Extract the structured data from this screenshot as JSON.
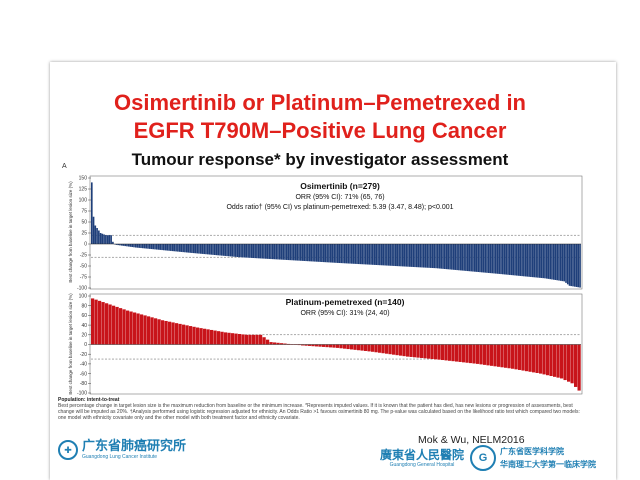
{
  "slide": {
    "title_line1": "Osimertinib or Platinum–Pemetrexed  in",
    "title_line2": "EGFR T790M–Positive Lung Cancer",
    "subtitle": "Tumour response* by investigator assessment",
    "panel_letter": "A",
    "citation": "Mok & Wu,   NELM2016",
    "footnote_population": "Population: intent-to-treat",
    "footnote_text": "Best percentage change in target lesion size is the maximum reduction from baseline or the minimum increase. *Represents imputed values. If it is known that the patient has died, has new lesions or progression of assessments, best change will be imputed as 20%. †Analysis performed using logistic regression adjusted for ethnicity. An Odds Ratio >1 favours osimertinib 80 mg. The p-value was calculated based on the likelihood ratio test which compared two models: one model with ethnicity covariate only and the other model with both treatment factor and ethnicity covariate.",
    "logo_left_cn": "广东省肺癌研究所",
    "logo_left_en": "Guangdong Lung Cancer Institute",
    "logo_right_cn": "廣東省人民醫院",
    "logo_right_en": "Guangdong General Hospital",
    "academy_line1": "广东省医学科学院",
    "academy_line2": "华南理工大学第一临床学院"
  },
  "colors": {
    "title": "#e0211c",
    "osimertinib": "#1f3f7a",
    "platinum": "#c8141a",
    "logo": "#1f7fb3"
  },
  "chart_data": [
    {
      "type": "bar",
      "series_name": "Osimertinib (n=279)",
      "annotation_orr": "ORR (95% CI): 71% (65, 76)",
      "annotation_odds": "Odds ratio† (95% CI) vs platinum-pemetrexed: 5.39 (3.47, 8.48); p<0.001",
      "ylabel": "Best change from baseline in target lesion size (%)",
      "yticks": [
        -100,
        -75,
        -50,
        -25,
        0,
        25,
        50,
        75,
        100,
        125,
        150
      ],
      "ylim": [
        -100,
        150
      ],
      "reference_lines": [
        20,
        -30
      ],
      "n": 279,
      "profile": [
        [
          0,
          140
        ],
        [
          1,
          62
        ],
        [
          2,
          42
        ],
        [
          5,
          25
        ],
        [
          8,
          20
        ],
        [
          11,
          20
        ],
        [
          12,
          5
        ],
        [
          13,
          0
        ],
        [
          14,
          -2
        ],
        [
          25,
          -8
        ],
        [
          56,
          -20
        ],
        [
          84,
          -30
        ],
        [
          140,
          -43
        ],
        [
          196,
          -55
        ],
        [
          232,
          -68
        ],
        [
          258,
          -78
        ],
        [
          269,
          -85
        ],
        [
          272,
          -95
        ],
        [
          278,
          -99
        ]
      ]
    },
    {
      "type": "bar",
      "series_name": "Platinum-pemetrexed (n=140)",
      "annotation_orr": "ORR (95% CI): 31% (24, 40)",
      "ylabel": "Best change from baseline in target lesion size (%)",
      "yticks": [
        -100,
        -80,
        -60,
        -40,
        -20,
        0,
        20,
        40,
        60,
        80,
        100
      ],
      "ylim": [
        -100,
        100
      ],
      "reference_lines": [
        20,
        -30
      ],
      "n": 140,
      "profile": [
        [
          0,
          95
        ],
        [
          10,
          70
        ],
        [
          20,
          50
        ],
        [
          30,
          35
        ],
        [
          38,
          25
        ],
        [
          44,
          20
        ],
        [
          48,
          20
        ],
        [
          51,
          5
        ],
        [
          55,
          2
        ],
        [
          60,
          -2
        ],
        [
          70,
          -7
        ],
        [
          80,
          -15
        ],
        [
          90,
          -25
        ],
        [
          100,
          -32
        ],
        [
          110,
          -40
        ],
        [
          120,
          -50
        ],
        [
          128,
          -60
        ],
        [
          134,
          -70
        ],
        [
          137,
          -80
        ],
        [
          139,
          -95
        ]
      ]
    }
  ]
}
